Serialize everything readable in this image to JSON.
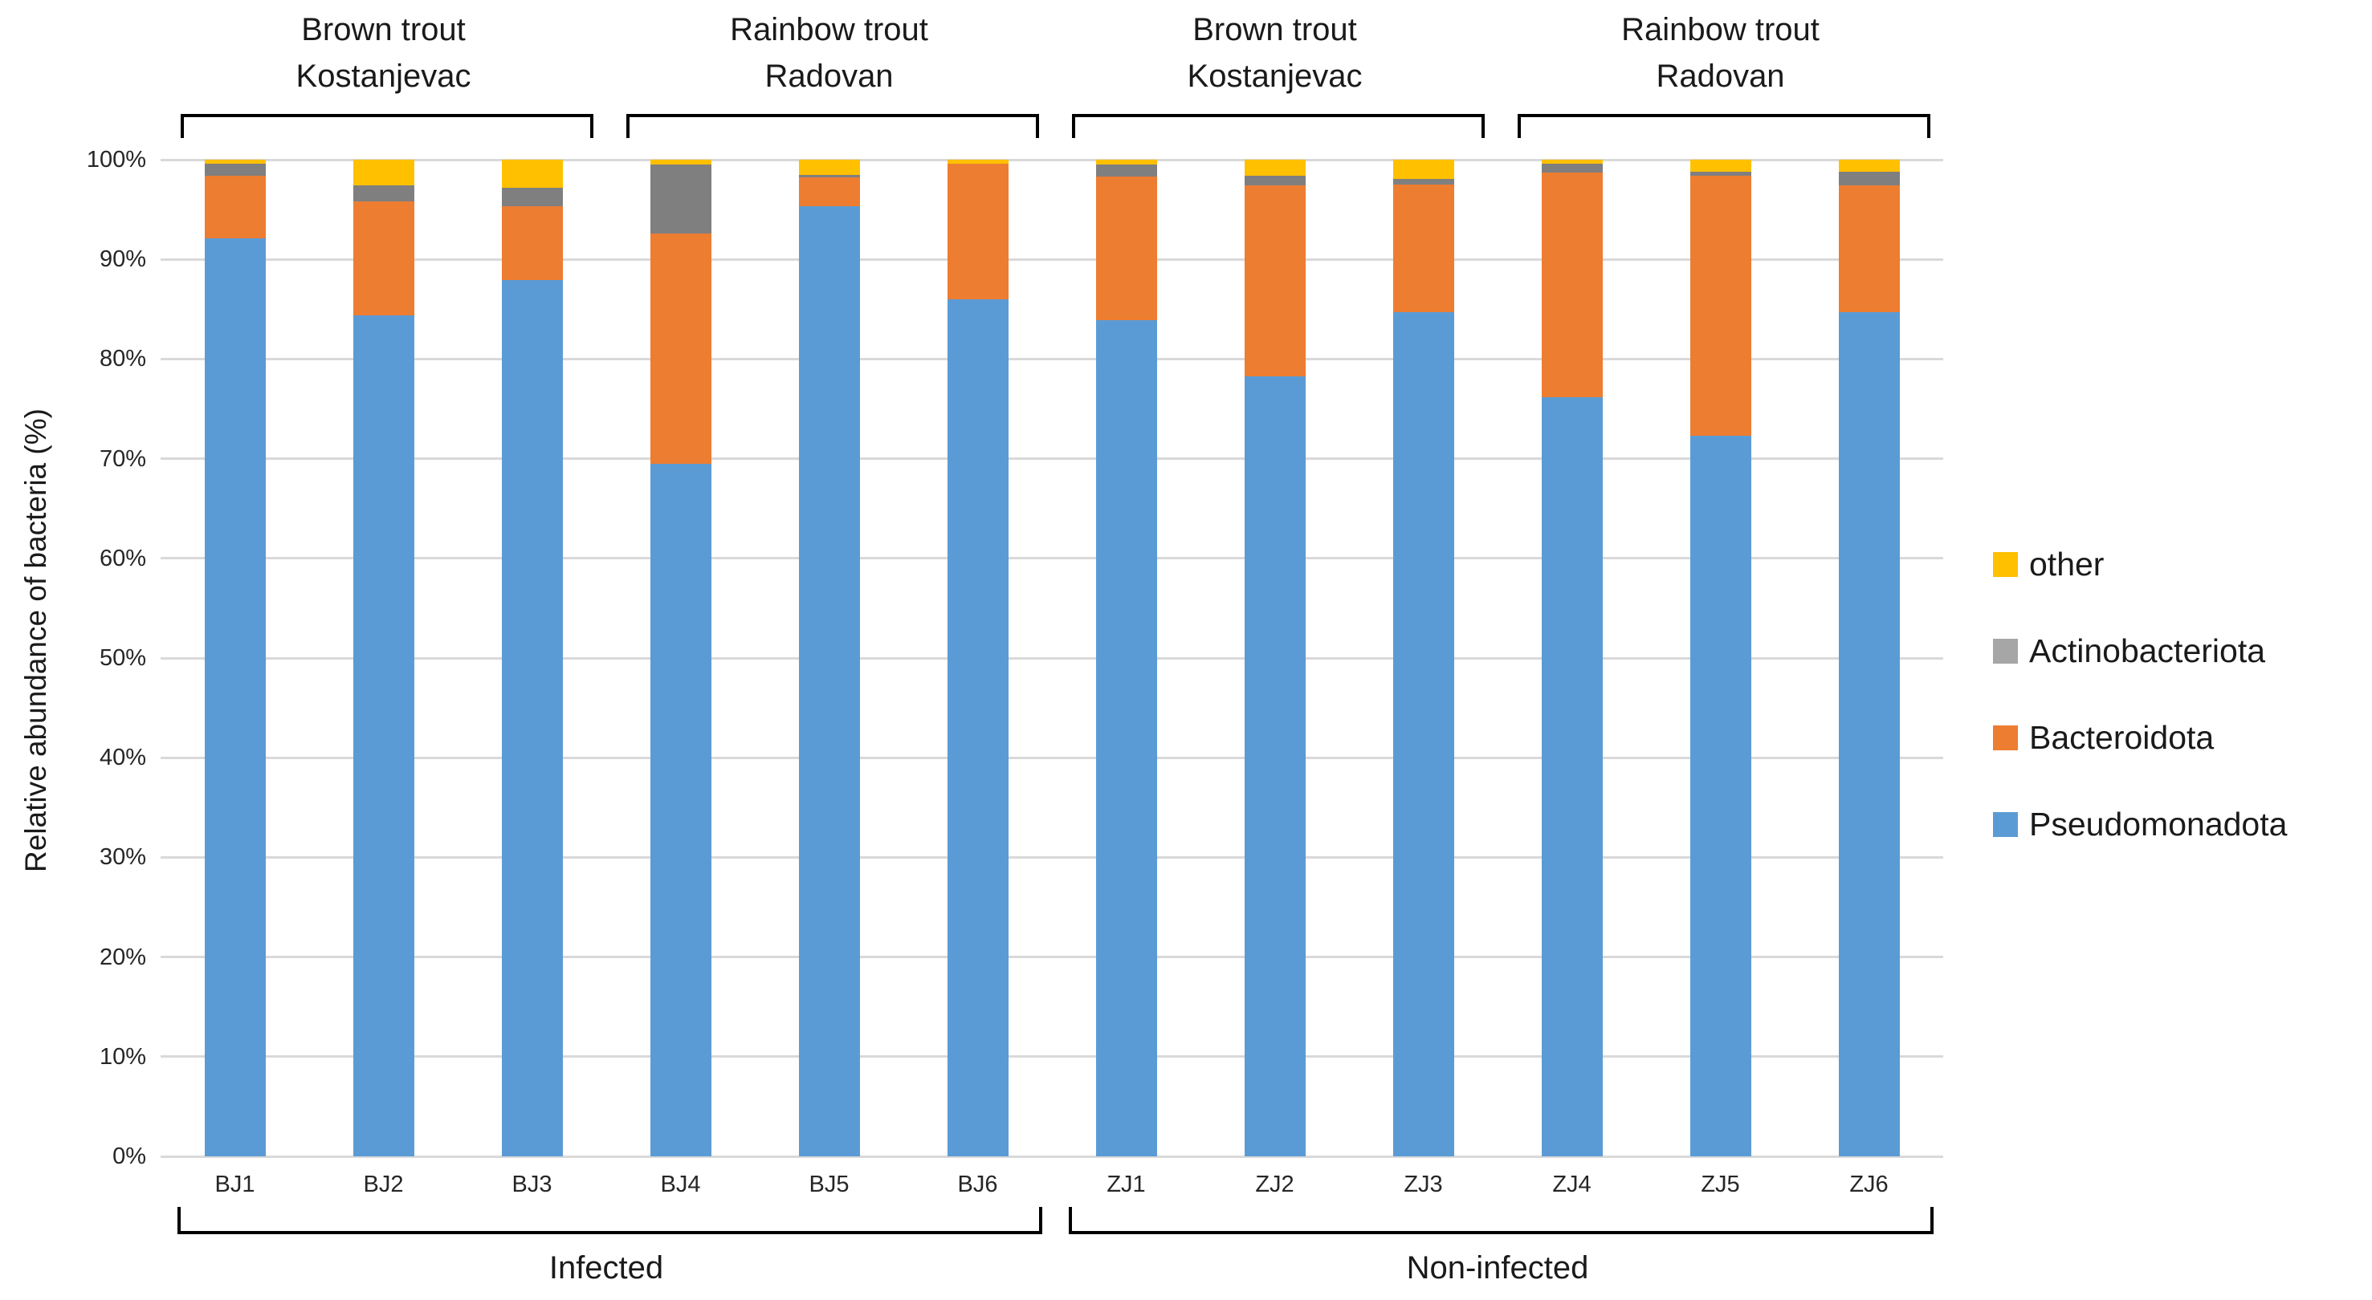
{
  "chart_data": {
    "type": "bar",
    "stacked": true,
    "title": "",
    "xlabel": "",
    "ylabel": "Relative abundance of bacteria (%)",
    "ylim": [
      0,
      100
    ],
    "y_ticks": [
      "0%",
      "10%",
      "20%",
      "30%",
      "40%",
      "50%",
      "60%",
      "70%",
      "80%",
      "90%",
      "100%"
    ],
    "y_tick_values": [
      0,
      10,
      20,
      30,
      40,
      50,
      60,
      70,
      80,
      90,
      100
    ],
    "grid": "horizontal",
    "legend_position": "right",
    "categories": [
      "BJ1",
      "BJ2",
      "BJ3",
      "BJ4",
      "BJ5",
      "BJ6",
      "ZJ1",
      "ZJ2",
      "ZJ3",
      "ZJ4",
      "ZJ5",
      "ZJ6"
    ],
    "series": [
      {
        "name": "Pseudomonadota",
        "color": "#5B9BD5",
        "values": [
          92.1,
          84.4,
          87.9,
          69.5,
          95.3,
          86.0,
          83.9,
          78.3,
          84.7,
          76.2,
          72.3,
          84.7
        ]
      },
      {
        "name": "Bacteroidota",
        "color": "#ED7D31",
        "values": [
          6.3,
          11.4,
          7.4,
          23.1,
          2.9,
          13.6,
          14.4,
          19.1,
          12.8,
          22.5,
          26.1,
          12.7
        ]
      },
      {
        "name": "Actinobacteriota",
        "color": "#7F7F7F",
        "values": [
          1.2,
          1.6,
          1.9,
          6.9,
          0.3,
          0.0,
          1.2,
          1.0,
          0.6,
          0.9,
          0.4,
          1.4
        ]
      },
      {
        "name": "other",
        "color": "#FFC000",
        "values": [
          0.4,
          2.6,
          2.8,
          0.5,
          1.5,
          0.4,
          0.5,
          1.6,
          1.9,
          0.4,
          1.2,
          1.2
        ]
      }
    ],
    "legend": [
      {
        "label": "other",
        "swatch_color": "#FFC000"
      },
      {
        "label": "Actinobacteriota",
        "swatch_color": "#A6A6A6"
      },
      {
        "label": "Bacteroidota",
        "swatch_color": "#ED7D31"
      },
      {
        "label": "Pseudomonadota",
        "swatch_color": "#5B9BD5"
      }
    ],
    "top_groups": [
      {
        "label_line1": "Brown trout",
        "label_line2": "Kostanjevac",
        "start_index": 0,
        "end_index": 2
      },
      {
        "label_line1": "Rainbow trout",
        "label_line2": "Radovan",
        "start_index": 3,
        "end_index": 5
      },
      {
        "label_line1": "Brown trout",
        "label_line2": "Kostanjevac",
        "start_index": 6,
        "end_index": 8
      },
      {
        "label_line1": "Rainbow trout",
        "label_line2": "Radovan",
        "start_index": 9,
        "end_index": 11
      }
    ],
    "bottom_groups": [
      {
        "label": "Infected",
        "start_index": 0,
        "end_index": 5
      },
      {
        "label": "Non-infected",
        "start_index": 6,
        "end_index": 11
      }
    ],
    "colors": {
      "gridline": "#D9D9D9",
      "bracket": "#000000",
      "text": "#1a1a1a"
    }
  }
}
